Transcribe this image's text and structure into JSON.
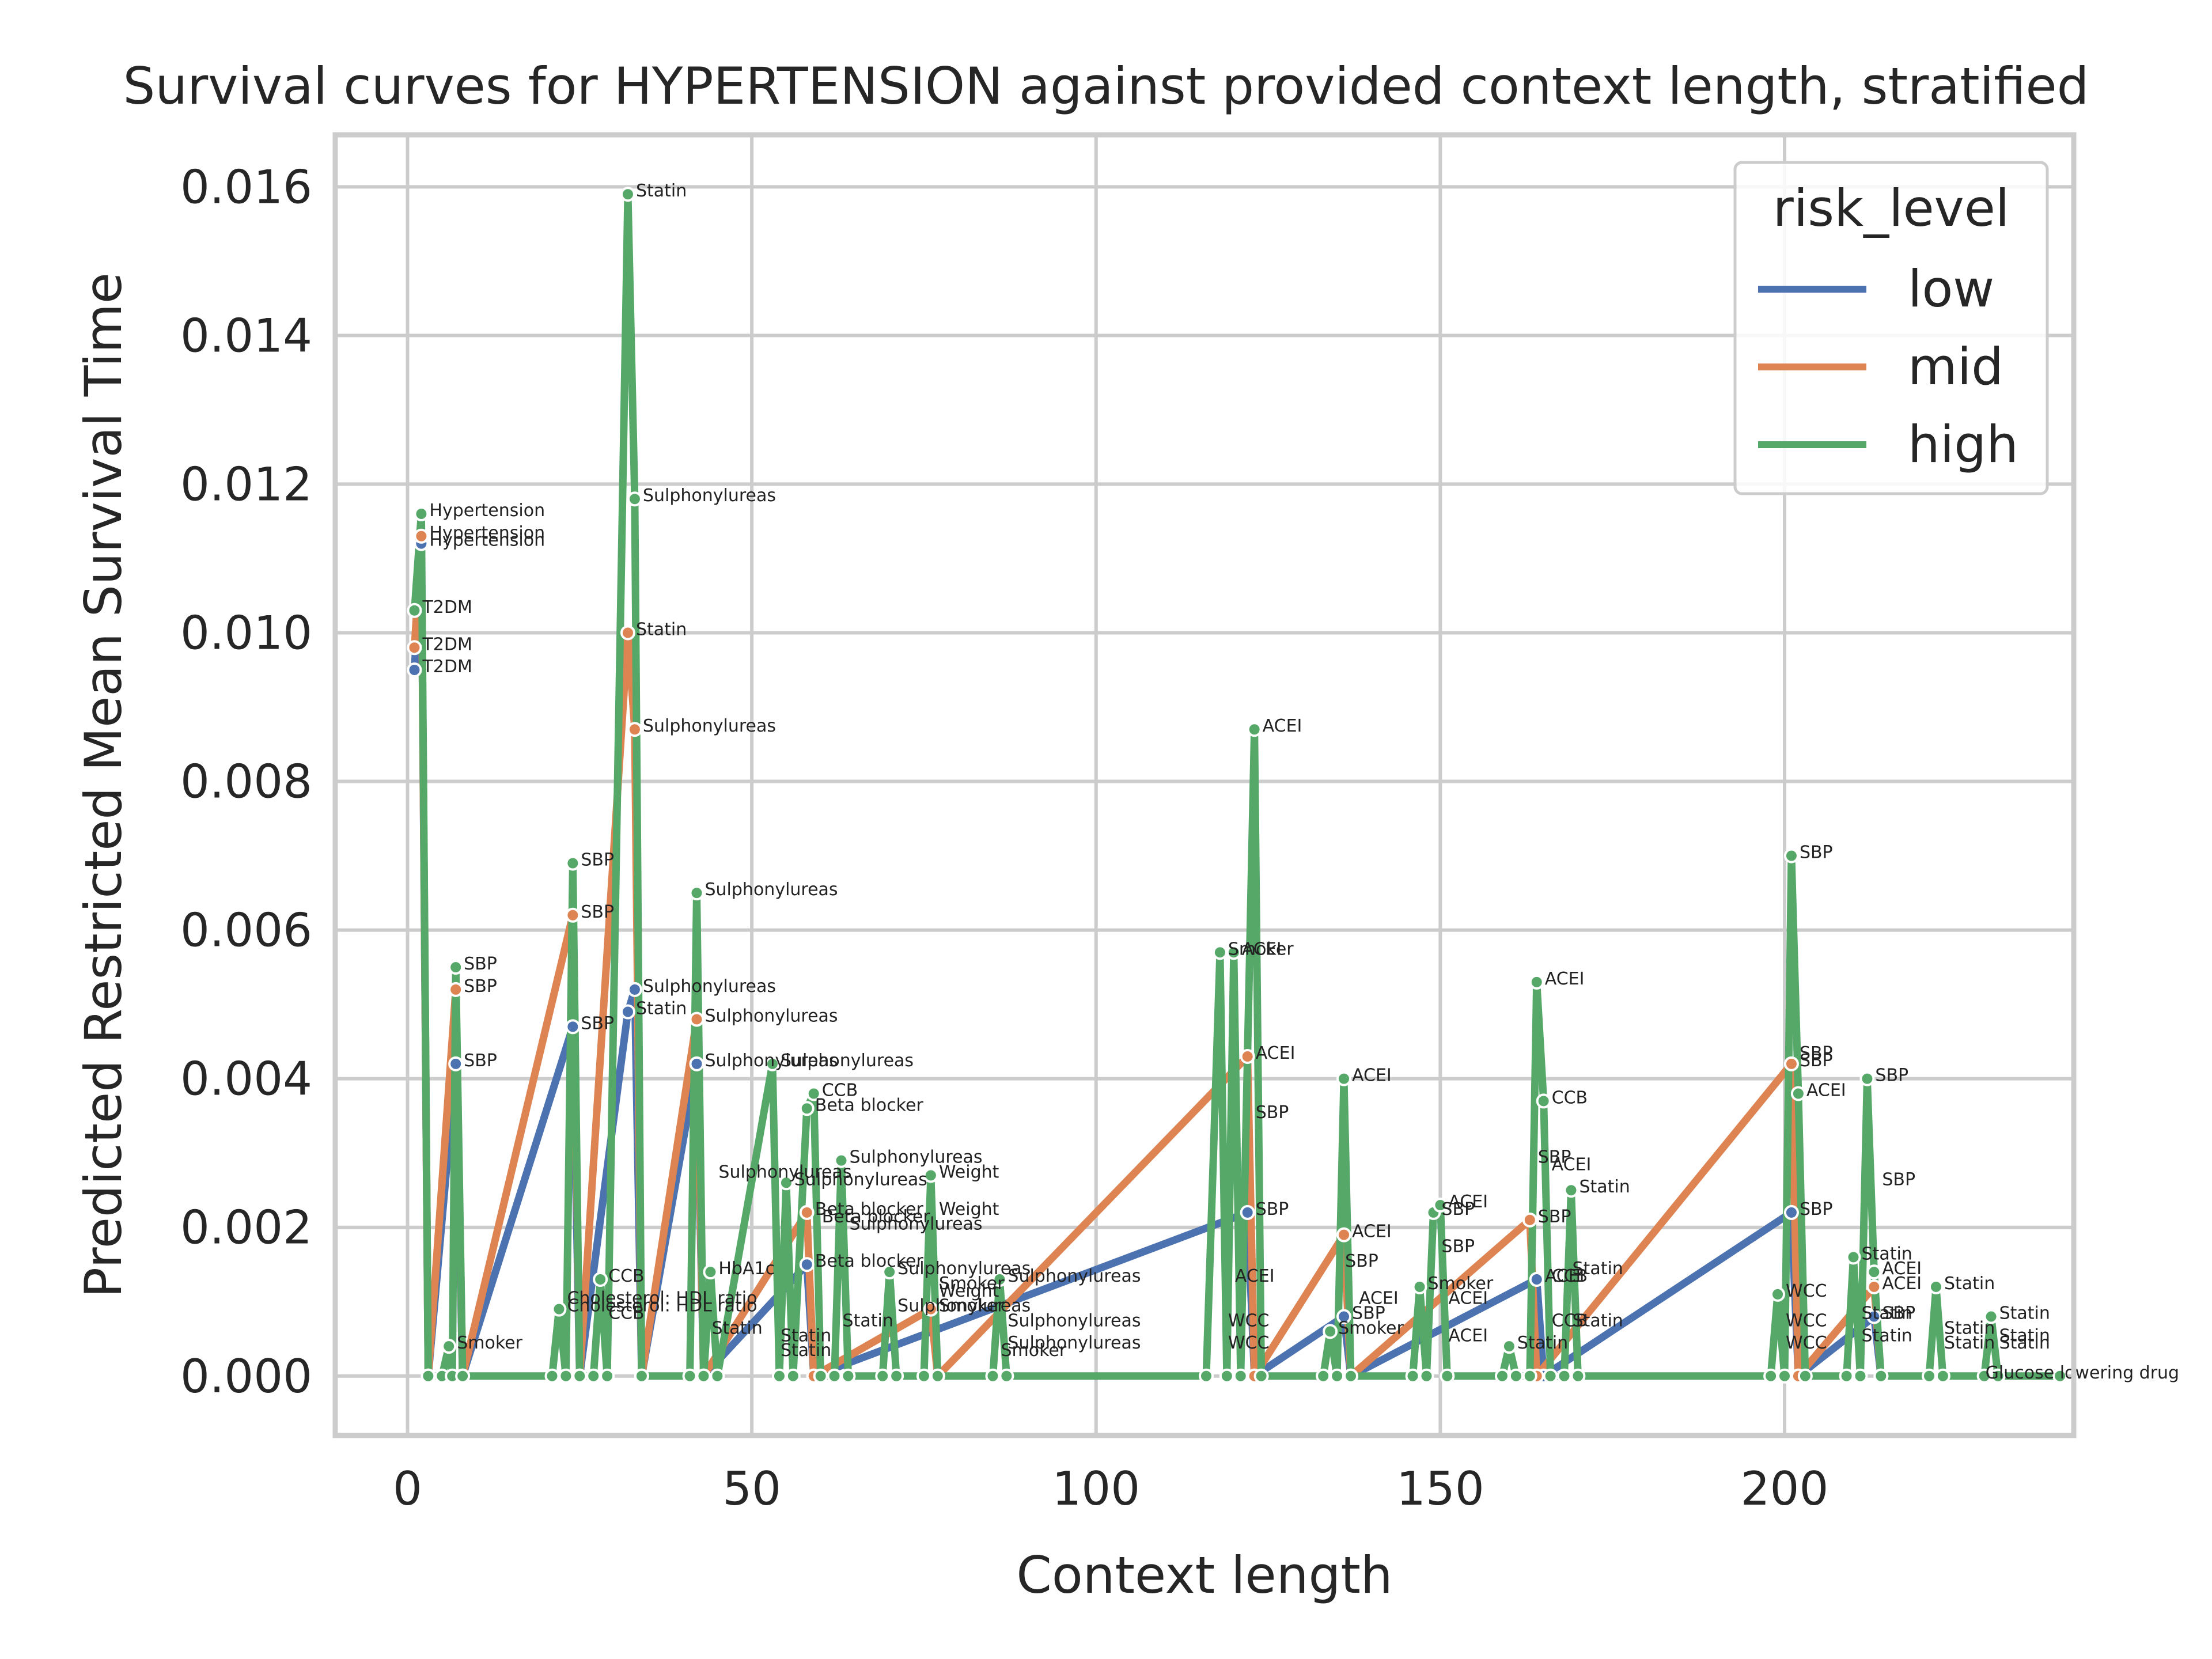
{
  "chart_data": {
    "type": "line",
    "title": "Survival curves for HYPERTENSION against provided context length, stratified",
    "xlabel": "Context length",
    "ylabel": "Predicted Restricted Mean Survival Time",
    "xlim": [
      -10.5,
      242
    ],
    "ylim": [
      -0.0008,
      0.0167
    ],
    "xticks": [
      0,
      50,
      100,
      150,
      200
    ],
    "xtick_labels": [
      "0",
      "50",
      "100",
      "150",
      "200"
    ],
    "yticks": [
      0.0,
      0.002,
      0.004,
      0.006,
      0.008,
      0.01,
      0.012,
      0.014,
      0.016
    ],
    "ytick_labels": [
      "0.000",
      "0.002",
      "0.004",
      "0.006",
      "0.008",
      "0.010",
      "0.012",
      "0.014",
      "0.016"
    ],
    "grid": true,
    "legend": {
      "title": "risk_level",
      "placement": "top-right"
    },
    "series": [
      {
        "name": "low",
        "color": "#4c72b0",
        "points": [
          [
            1,
            0.0095,
            "T2DM"
          ],
          [
            2,
            0.0112,
            "Hypertension"
          ],
          [
            3,
            0.0,
            ""
          ],
          [
            7,
            0.0042,
            "SBP"
          ],
          [
            8,
            0.0,
            ""
          ],
          [
            24,
            0.0047,
            "SBP"
          ],
          [
            25,
            0.0,
            ""
          ],
          [
            32,
            0.0049,
            "Statin"
          ],
          [
            33,
            0.0052,
            "Sulphonylureas"
          ],
          [
            34,
            0.0,
            ""
          ],
          [
            42,
            0.0042,
            "Sulphonylureas"
          ],
          [
            43,
            0.0,
            ""
          ],
          [
            58,
            0.0015,
            "Beta blocker"
          ],
          [
            59,
            0.0,
            ""
          ],
          [
            122,
            0.0022,
            "SBP"
          ],
          [
            123,
            0.0,
            ""
          ],
          [
            136,
            0.0008,
            "SBP"
          ],
          [
            137,
            0.0,
            ""
          ],
          [
            164,
            0.0013,
            "ACEI"
          ],
          [
            165,
            0.0,
            ""
          ],
          [
            201,
            0.0022,
            "SBP"
          ],
          [
            202,
            0.0,
            ""
          ],
          [
            213,
            0.0008,
            "SBP"
          ],
          [
            214,
            0.0,
            ""
          ]
        ]
      },
      {
        "name": "mid",
        "color": "#dd8452",
        "points": [
          [
            1,
            0.0098,
            "T2DM"
          ],
          [
            2,
            0.0113,
            "Hypertension"
          ],
          [
            3,
            0.0,
            ""
          ],
          [
            7,
            0.0052,
            "SBP"
          ],
          [
            8,
            0.0,
            ""
          ],
          [
            24,
            0.0062,
            "SBP"
          ],
          [
            25,
            0.0,
            ""
          ],
          [
            32,
            0.01,
            "Statin"
          ],
          [
            33,
            0.0087,
            "Sulphonylureas"
          ],
          [
            34,
            0.0,
            ""
          ],
          [
            42,
            0.0048,
            "Sulphonylureas"
          ],
          [
            43,
            0.0,
            ""
          ],
          [
            58,
            0.0022,
            "Beta blocker"
          ],
          [
            59,
            0.0,
            ""
          ],
          [
            76,
            0.0009,
            "Smoker"
          ],
          [
            77,
            0.0,
            ""
          ],
          [
            122,
            0.0043,
            "ACEI"
          ],
          [
            123,
            0.0,
            ""
          ],
          [
            136,
            0.0019,
            "ACEI"
          ],
          [
            137,
            0.0,
            ""
          ],
          [
            163,
            0.0021,
            "SBP"
          ],
          [
            164,
            0.0,
            ""
          ],
          [
            201,
            0.0042,
            "SBP"
          ],
          [
            202,
            0.0,
            ""
          ],
          [
            213,
            0.0012,
            "ACEI"
          ],
          [
            214,
            0.0,
            ""
          ]
        ]
      },
      {
        "name": "high",
        "color": "#55a868",
        "points": [
          [
            1,
            0.0103,
            "T2DM"
          ],
          [
            2,
            0.0116,
            "Hypertension"
          ],
          [
            3,
            0.0,
            ""
          ],
          [
            5,
            0.0,
            ""
          ],
          [
            6,
            0.0004,
            "Smoker"
          ],
          [
            6.5,
            0.0,
            ""
          ],
          [
            7,
            0.0055,
            "SBP"
          ],
          [
            8,
            0.0,
            ""
          ],
          [
            21,
            0.0,
            ""
          ],
          [
            22,
            0.0009,
            "Cholesterol: HDL ratio"
          ],
          [
            23,
            0.0,
            ""
          ],
          [
            24,
            0.0069,
            "SBP"
          ],
          [
            25,
            0.0,
            ""
          ],
          [
            27,
            0.0,
            ""
          ],
          [
            28,
            0.0013,
            "CCB"
          ],
          [
            29,
            0.0,
            ""
          ],
          [
            32,
            0.0159,
            "Statin"
          ],
          [
            33,
            0.0118,
            "Sulphonylureas"
          ],
          [
            34,
            0.0,
            ""
          ],
          [
            41,
            0.0,
            ""
          ],
          [
            42,
            0.0065,
            "Sulphonylureas"
          ],
          [
            43,
            0.0,
            ""
          ],
          [
            44,
            0.0014,
            "HbA1c"
          ],
          [
            45,
            0.0,
            ""
          ],
          [
            53,
            0.0042,
            "Sulphonylureas"
          ],
          [
            54,
            0.0,
            ""
          ],
          [
            55,
            0.0026,
            "Sulphonylureas"
          ],
          [
            56,
            0.0,
            ""
          ],
          [
            58,
            0.0036,
            "Beta blocker"
          ],
          [
            59,
            0.0038,
            "CCB"
          ],
          [
            60,
            0.0,
            ""
          ],
          [
            62,
            0.0,
            ""
          ],
          [
            63,
            0.0029,
            "Sulphonylureas"
          ],
          [
            64,
            0.0,
            ""
          ],
          [
            69,
            0.0,
            ""
          ],
          [
            70,
            0.0014,
            "Sulphonylureas"
          ],
          [
            71,
            0.0,
            ""
          ],
          [
            75,
            0.0,
            ""
          ],
          [
            76,
            0.0027,
            "Weight"
          ],
          [
            77,
            0.0,
            ""
          ],
          [
            85,
            0.0,
            ""
          ],
          [
            86,
            0.0013,
            "Sulphonylureas"
          ],
          [
            87,
            0.0,
            ""
          ],
          [
            116,
            0.0,
            ""
          ],
          [
            118,
            0.0057,
            "Smoker"
          ],
          [
            119,
            0.0,
            ""
          ],
          [
            120,
            0.0057,
            "ACEI"
          ],
          [
            121,
            0.0,
            ""
          ],
          [
            123,
            0.0087,
            "ACEI"
          ],
          [
            124,
            0.0,
            ""
          ],
          [
            133,
            0.0,
            ""
          ],
          [
            134,
            0.0006,
            "Smoker"
          ],
          [
            135,
            0.0,
            ""
          ],
          [
            136,
            0.004,
            "ACEI"
          ],
          [
            137,
            0.0,
            ""
          ],
          [
            146,
            0.0,
            ""
          ],
          [
            147,
            0.0012,
            "Smoker"
          ],
          [
            148,
            0.0,
            ""
          ],
          [
            149,
            0.0022,
            "SBP"
          ],
          [
            150,
            0.0023,
            "ACEI"
          ],
          [
            151,
            0.0,
            ""
          ],
          [
            159,
            0.0,
            ""
          ],
          [
            160,
            0.0004,
            "Statin"
          ],
          [
            161,
            0.0,
            ""
          ],
          [
            163,
            0.0,
            ""
          ],
          [
            164,
            0.0053,
            "ACEI"
          ],
          [
            165,
            0.0037,
            "CCB"
          ],
          [
            166,
            0.0,
            ""
          ],
          [
            168,
            0.0,
            ""
          ],
          [
            169,
            0.0025,
            "Statin"
          ],
          [
            170,
            0.0,
            ""
          ],
          [
            198,
            0.0,
            ""
          ],
          [
            199,
            0.0011,
            "WCC"
          ],
          [
            200,
            0.0,
            ""
          ],
          [
            201,
            0.007,
            "SBP"
          ],
          [
            202,
            0.0038,
            "ACEI"
          ],
          [
            203,
            0.0,
            ""
          ],
          [
            209,
            0.0,
            ""
          ],
          [
            210,
            0.0016,
            "Statin"
          ],
          [
            211,
            0.0,
            ""
          ],
          [
            212,
            0.004,
            "SBP"
          ],
          [
            213,
            0.0014,
            "ACEI"
          ],
          [
            214,
            0.0,
            ""
          ],
          [
            221,
            0.0,
            ""
          ],
          [
            222,
            0.0012,
            "Statin"
          ],
          [
            223,
            0.0,
            ""
          ],
          [
            229,
            0.0,
            ""
          ],
          [
            230,
            0.0008,
            "Statin"
          ],
          [
            231,
            0.0,
            ""
          ],
          [
            240,
            0.0,
            ""
          ]
        ]
      }
    ],
    "annotations": [
      {
        "x": 59,
        "y": 0.0021,
        "text": "Beta blocker"
      },
      {
        "x": 63,
        "y": 0.002,
        "text": "Sulphonylureas"
      },
      {
        "x": 76,
        "y": 0.0022,
        "text": "Weight"
      },
      {
        "x": 44,
        "y": 0.0027,
        "text": "Sulphonylureas"
      },
      {
        "x": 119,
        "y": 0.0013,
        "text": "ACEI"
      },
      {
        "x": 163,
        "y": 0.0029,
        "text": "SBP"
      },
      {
        "x": 165,
        "y": 0.0028,
        "text": "ACEI"
      },
      {
        "x": 122,
        "y": 0.0035,
        "text": "SBP"
      },
      {
        "x": 135,
        "y": 0.0015,
        "text": "SBP"
      },
      {
        "x": 201,
        "y": 0.0043,
        "text": "SBP"
      },
      {
        "x": 213,
        "y": 0.0026,
        "text": "SBP"
      },
      {
        "x": 149,
        "y": 0.0017,
        "text": "SBP"
      },
      {
        "x": 165,
        "y": 0.0013,
        "text": "CCB"
      },
      {
        "x": 165,
        "y": 0.0007,
        "text": "CCB"
      },
      {
        "x": 168,
        "y": 0.0007,
        "text": "Statin"
      },
      {
        "x": 168,
        "y": 0.0014,
        "text": "Statin"
      },
      {
        "x": 230,
        "y": 0.0005,
        "text": "Statin"
      },
      {
        "x": 230,
        "y": 0.0004,
        "text": "Statin"
      },
      {
        "x": 199,
        "y": 0.0007,
        "text": "WCC"
      },
      {
        "x": 199,
        "y": 0.0004,
        "text": "WCC"
      },
      {
        "x": 210,
        "y": 0.0008,
        "text": "Statin"
      },
      {
        "x": 210,
        "y": 0.0005,
        "text": "Statin"
      },
      {
        "x": 222,
        "y": 0.0006,
        "text": "Statin"
      },
      {
        "x": 222,
        "y": 0.0004,
        "text": "Statin"
      },
      {
        "x": 137,
        "y": 0.001,
        "text": "ACEI"
      },
      {
        "x": 150,
        "y": 0.001,
        "text": "ACEI"
      },
      {
        "x": 150,
        "y": 0.0005,
        "text": "ACEI"
      },
      {
        "x": 118,
        "y": 0.0007,
        "text": "WCC"
      },
      {
        "x": 118,
        "y": 0.0004,
        "text": "WCC"
      },
      {
        "x": 53,
        "y": 0.0005,
        "text": "Statin"
      },
      {
        "x": 53,
        "y": 0.0003,
        "text": "Statin"
      },
      {
        "x": 62,
        "y": 0.0007,
        "text": "Statin"
      },
      {
        "x": 28,
        "y": 0.0008,
        "text": "CCB"
      },
      {
        "x": 22,
        "y": 0.001,
        "text": "Cholesterol: HDL ratio"
      },
      {
        "x": 43,
        "y": 0.0006,
        "text": "Statin"
      },
      {
        "x": 70,
        "y": 0.0009,
        "text": "Sulphonylureas"
      },
      {
        "x": 86,
        "y": 0.0007,
        "text": "Sulphonylureas"
      },
      {
        "x": 86,
        "y": 0.0004,
        "text": "Sulphonylureas"
      },
      {
        "x": 76,
        "y": 0.0011,
        "text": "Weight"
      },
      {
        "x": 76,
        "y": 0.0012,
        "text": "Smoker"
      },
      {
        "x": 85,
        "y": 0.0003,
        "text": "Smoker"
      },
      {
        "x": 228,
        "y": 0.0,
        "text": "Glucose lowering drug"
      }
    ]
  }
}
